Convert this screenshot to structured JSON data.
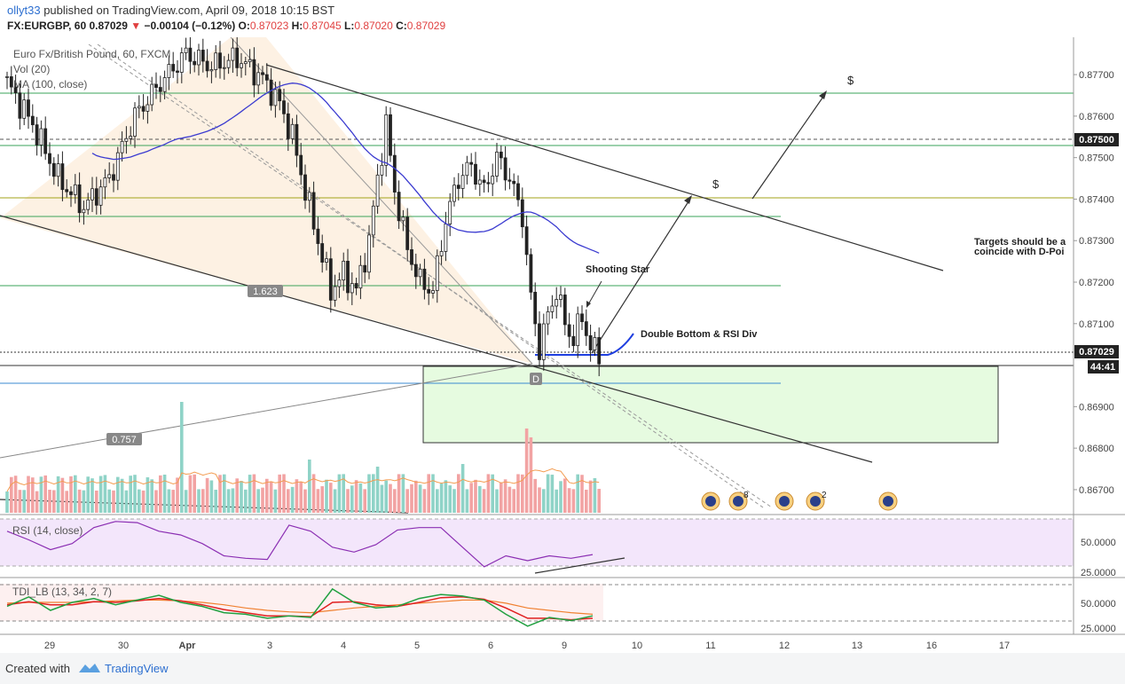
{
  "header": {
    "user": "ollyt33",
    "published": "published on TradingView.com, April 09, 2018 10:15 BST",
    "symbol": "FX:EURGBP, 60",
    "last": "0.87029",
    "arrow": "▼",
    "change": "−0.00104 (−0.12%)",
    "o_label": "O:",
    "o": "0.87023",
    "h_label": "H:",
    "h": "0.87045",
    "l_label": "L:",
    "l": "0.87020",
    "c_label": "C:",
    "c": "0.87029"
  },
  "legend": {
    "line1": "Euro Fx/British Pound, 60, FXCM",
    "line2": "Vol (20)",
    "line3": "MA (100, close)"
  },
  "footer": {
    "created": "Created with",
    "brand": "TradingView"
  },
  "colors": {
    "up": "#26a69a",
    "down": "#e06060",
    "ma": "#3b3bd0",
    "rsi": "#8b2fb3"
  },
  "chart_data": [
    {
      "type": "candlestick",
      "pane": "price",
      "ylim": [
        0.8664,
        0.8779
      ],
      "y_ticks": [
        "0.87700",
        "0.87600",
        "0.87500",
        "0.87400",
        "0.87300",
        "0.87200",
        "0.87100",
        "0.86900",
        "0.86800",
        "0.86700"
      ],
      "x_ticks": [
        "29",
        "30",
        "Apr",
        "3",
        "4",
        "5",
        "6",
        "9",
        "10",
        "11",
        "12",
        "13",
        "16",
        "17"
      ],
      "price_labels": {
        "level_1": "0.87500",
        "current": "0.87029",
        "countdown": "44:41"
      },
      "annotations": {
        "shooting_star": "Shooting Star",
        "double_bottom": "Double Bottom & RSI Div",
        "targets_1": "Targets should be a",
        "targets_2": "coincide with D-Poi",
        "dollar": "$",
        "fib_1": "1.623",
        "fib_2": "0.757",
        "point_d": "D",
        "event_count_1": "8",
        "event_count_2": "2"
      },
      "close_path": [
        [
          0,
          0.8768
        ],
        [
          6,
          0.8758
        ],
        [
          12,
          0.8745
        ],
        [
          18,
          0.8738
        ],
        [
          24,
          0.8745
        ],
        [
          30,
          0.876
        ],
        [
          36,
          0.8768
        ],
        [
          42,
          0.8775
        ],
        [
          48,
          0.8772
        ],
        [
          54,
          0.8774
        ],
        [
          60,
          0.8769
        ],
        [
          64,
          0.8763
        ],
        [
          67,
          0.8755
        ],
        [
          70,
          0.8742
        ],
        [
          73,
          0.873
        ],
        [
          76,
          0.8718
        ],
        [
          79,
          0.8722
        ],
        [
          82,
          0.8718
        ],
        [
          85,
          0.873
        ],
        [
          87,
          0.8745
        ],
        [
          89,
          0.8758
        ],
        [
          91,
          0.8742
        ],
        [
          94,
          0.8728
        ],
        [
          97,
          0.872
        ],
        [
          100,
          0.8718
        ],
        [
          103,
          0.8735
        ],
        [
          106,
          0.8745
        ],
        [
          109,
          0.8748
        ],
        [
          112,
          0.8742
        ],
        [
          115,
          0.875
        ],
        [
          118,
          0.8745
        ],
        [
          121,
          0.8736
        ],
        [
          123,
          0.8716
        ],
        [
          125,
          0.8704
        ],
        [
          127,
          0.8712
        ],
        [
          129,
          0.8718
        ],
        [
          131,
          0.871
        ],
        [
          133,
          0.8706
        ],
        [
          135,
          0.8712
        ],
        [
          137,
          0.8704
        ],
        [
          139,
          0.8703
        ]
      ]
    },
    {
      "type": "line",
      "pane": "rsi",
      "title": "RSI (14, close)",
      "ylim": [
        18,
        65
      ],
      "y_ticks": [
        "50.0000",
        "25.0000"
      ],
      "series": [
        {
          "name": "RSI",
          "values": [
            55,
            48,
            40,
            45,
            58,
            63,
            62,
            55,
            52,
            45,
            35,
            33,
            32,
            60,
            55,
            42,
            38,
            44,
            56,
            58,
            58,
            42,
            26,
            35,
            31,
            35,
            33,
            36
          ]
        }
      ]
    },
    {
      "type": "line",
      "pane": "tdi",
      "title": "TDI_LB (13, 34, 2, 7)",
      "ylim": [
        18,
        82
      ],
      "y_ticks": [
        "50.0000",
        "25.0000"
      ],
      "series": [
        {
          "name": "price",
          "values": [
            50,
            62,
            45,
            55,
            60,
            52,
            58,
            64,
            55,
            50,
            42,
            40,
            35,
            38,
            36,
            72,
            55,
            48,
            50,
            60,
            65,
            63,
            58,
            40,
            25,
            36,
            32,
            38
          ]
        },
        {
          "name": "signal",
          "values": [
            52,
            56,
            52,
            52,
            56,
            55,
            57,
            60,
            57,
            52,
            46,
            42,
            38,
            38,
            37,
            55,
            56,
            52,
            50,
            55,
            61,
            62,
            59,
            48,
            35,
            35,
            33,
            35
          ]
        },
        {
          "name": "base",
          "values": [
            54,
            55,
            55,
            55,
            56,
            57,
            58,
            58,
            57,
            55,
            52,
            48,
            45,
            43,
            42,
            45,
            48,
            50,
            52,
            54,
            56,
            58,
            58,
            54,
            48,
            45,
            42,
            40
          ]
        }
      ]
    }
  ]
}
